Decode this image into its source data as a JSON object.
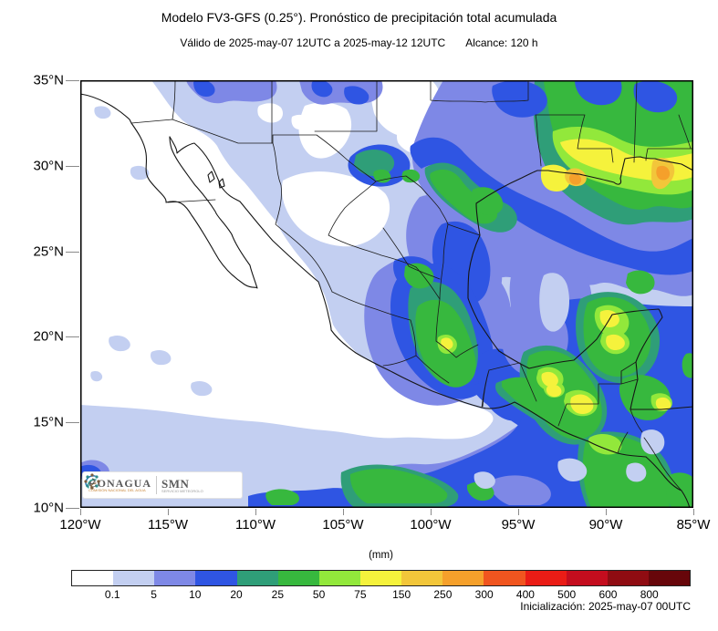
{
  "header": {
    "title": "Modelo FV3-GFS (0.25°). Pronóstico de precipitación total acumulada",
    "valid_text": "Válido de 2025-may-07 12UTC a 2025-may-12 12UTC",
    "reach_text": "Alcance: 120 h"
  },
  "axes": {
    "x_tick_labels": [
      "120°W",
      "115°W",
      "110°W",
      "105°W",
      "100°W",
      "95°W",
      "90°W",
      "85°W"
    ],
    "y_tick_labels": [
      "35°N",
      "30°N",
      "25°N",
      "20°N",
      "15°N",
      "10°N"
    ]
  },
  "colorbar": {
    "unit_label": "(mm)",
    "boundary_labels": [
      "0.1",
      "5",
      "10",
      "20",
      "25",
      "50",
      "75",
      "150",
      "250",
      "300",
      "400",
      "500",
      "600",
      "800"
    ],
    "colors": [
      "#ffffff",
      "#c3cff1",
      "#7e88e6",
      "#2f55e3",
      "#2f9e78",
      "#37b83e",
      "#92e83b",
      "#f5f23c",
      "#f2c63a",
      "#f5a02b",
      "#f0551f",
      "#ea1c16",
      "#c40d1e",
      "#8f0c12",
      "#67060a"
    ]
  },
  "branding": {
    "conagua_label": "CONAGUA",
    "conagua_tagline": "COMISIÓN NACIONAL DEL AGUA",
    "smn_label": "SMN",
    "smn_tagline": "SERVICIO METEOROLÓGICO NACIONAL"
  },
  "footer": {
    "initialization": "Inicialización: 2025-may-07 00UTC"
  }
}
